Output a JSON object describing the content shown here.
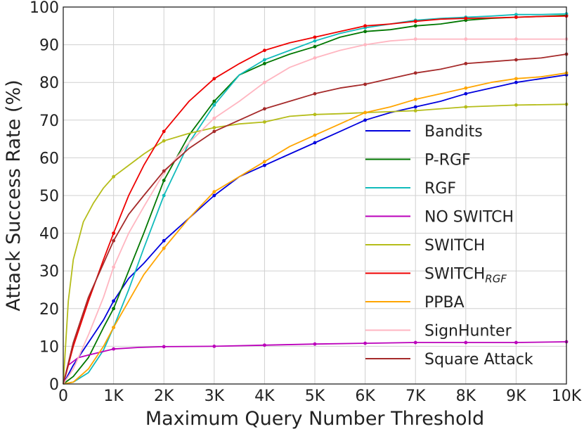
{
  "chart_data": {
    "type": "line",
    "title": "",
    "xlabel": "Maximum Query Number Threshold",
    "ylabel": "Attack Success Rate (%)",
    "xlim": [
      0,
      10000
    ],
    "ylim": [
      0,
      100
    ],
    "grid": true,
    "legend_position": "bottom-right",
    "x_ticks": [
      {
        "value": 0,
        "label": "0"
      },
      {
        "value": 1000,
        "label": "1K"
      },
      {
        "value": 2000,
        "label": "2K"
      },
      {
        "value": 3000,
        "label": "3K"
      },
      {
        "value": 4000,
        "label": "4K"
      },
      {
        "value": 5000,
        "label": "5K"
      },
      {
        "value": 6000,
        "label": "6K"
      },
      {
        "value": 7000,
        "label": "7K"
      },
      {
        "value": 8000,
        "label": "8K"
      },
      {
        "value": 9000,
        "label": "9K"
      },
      {
        "value": 10000,
        "label": "10K"
      }
    ],
    "y_ticks": [
      {
        "value": 0,
        "label": "0"
      },
      {
        "value": 10,
        "label": "10"
      },
      {
        "value": 20,
        "label": "20"
      },
      {
        "value": 30,
        "label": "30"
      },
      {
        "value": 40,
        "label": "40"
      },
      {
        "value": 50,
        "label": "50"
      },
      {
        "value": 60,
        "label": "60"
      },
      {
        "value": 70,
        "label": "70"
      },
      {
        "value": 80,
        "label": "80"
      },
      {
        "value": 90,
        "label": "90"
      },
      {
        "value": 100,
        "label": "100"
      }
    ],
    "series": [
      {
        "name": "Bandits",
        "label_main": "Bandits",
        "label_sub": "",
        "color": "#0000dd",
        "x": [
          0,
          200,
          500,
          800,
          1000,
          1300,
          1600,
          2000,
          2500,
          3000,
          3500,
          4000,
          4500,
          5000,
          5500,
          6000,
          6500,
          7000,
          7500,
          8000,
          8500,
          9000,
          9500,
          10000
        ],
        "y": [
          0,
          5,
          11,
          17,
          22,
          28,
          32,
          38,
          44,
          50,
          55,
          58,
          61,
          64,
          67,
          70,
          72,
          73.5,
          75,
          77,
          78.5,
          80,
          81,
          82
        ]
      },
      {
        "name": "P-RGF",
        "label_main": "P-RGF",
        "label_sub": "",
        "color": "#007700",
        "x": [
          0,
          200,
          500,
          800,
          1000,
          1300,
          1600,
          2000,
          2500,
          3000,
          3500,
          4000,
          4500,
          5000,
          5500,
          6000,
          6500,
          7000,
          7500,
          8000,
          8500,
          9000,
          9500,
          10000
        ],
        "y": [
          0,
          2,
          7,
          15,
          20,
          30,
          40,
          54,
          66,
          75,
          82,
          85,
          87.5,
          89.5,
          92,
          93.5,
          94,
          95,
          95.5,
          96.5,
          97,
          97.3,
          97.5,
          97.8
        ]
      },
      {
        "name": "RGF",
        "label_main": "RGF",
        "label_sub": "",
        "color": "#11bbbb",
        "x": [
          0,
          200,
          500,
          800,
          1000,
          1300,
          1600,
          2000,
          2500,
          3000,
          3500,
          4000,
          4500,
          5000,
          5500,
          6000,
          6500,
          7000,
          7500,
          8000,
          8500,
          9000,
          9500,
          10000
        ],
        "y": [
          0,
          0.5,
          3,
          9,
          15,
          25,
          36,
          50,
          64,
          74,
          82,
          86,
          88.5,
          91,
          93,
          94.5,
          95.5,
          96.5,
          97,
          97.3,
          97.6,
          98,
          98,
          98.2
        ]
      },
      {
        "name": "NO SWITCH",
        "label_main": "NO SWITCH",
        "label_sub": "",
        "color": "#bb00bb",
        "x": [
          0,
          100,
          300,
          600,
          1000,
          1500,
          2000,
          3000,
          4000,
          5000,
          6000,
          7000,
          8000,
          9000,
          10000
        ],
        "y": [
          0,
          5,
          7,
          8,
          9.3,
          9.7,
          9.9,
          10,
          10.3,
          10.6,
          10.8,
          11,
          11,
          11,
          11.2
        ]
      },
      {
        "name": "SWITCH",
        "label_main": "SWITCH",
        "label_sub": "",
        "color": "#b5bd1a",
        "x": [
          0,
          100,
          200,
          400,
          600,
          800,
          1000,
          1300,
          1600,
          2000,
          2500,
          3000,
          3500,
          4000,
          4500,
          5000,
          5500,
          6000,
          7000,
          8000,
          9000,
          10000
        ],
        "y": [
          0,
          22,
          33,
          43,
          48,
          52,
          55,
          58,
          61,
          64.5,
          66.5,
          68,
          69,
          69.5,
          71,
          71.5,
          71.7,
          72,
          72.5,
          73.5,
          74,
          74.2
        ]
      },
      {
        "name": "SWITCH_RGF",
        "label_main": "SWITCH",
        "label_sub": "RGF",
        "color": "#ee0000",
        "x": [
          0,
          200,
          500,
          800,
          1000,
          1300,
          1600,
          2000,
          2500,
          3000,
          3500,
          4000,
          4500,
          5000,
          5500,
          6000,
          6500,
          7000,
          7500,
          8000,
          8500,
          9000,
          9500,
          10000
        ],
        "y": [
          0,
          10,
          22,
          33,
          40,
          50,
          58,
          67,
          75,
          81,
          85,
          88.5,
          90.5,
          92,
          93.5,
          95,
          95.5,
          96.2,
          96.8,
          97,
          97.1,
          97.3,
          97.5,
          97.6
        ]
      },
      {
        "name": "PPBA",
        "label_main": "PPBA",
        "label_sub": "",
        "color": "#ffa500",
        "x": [
          0,
          200,
          500,
          800,
          1000,
          1300,
          1600,
          2000,
          2500,
          3000,
          3500,
          4000,
          4500,
          5000,
          5500,
          6000,
          6500,
          7000,
          7500,
          8000,
          8500,
          9000,
          9500,
          10000
        ],
        "y": [
          0,
          0.5,
          4,
          10,
          15,
          22,
          29,
          36,
          44,
          51,
          55,
          59,
          63,
          66,
          69,
          72,
          73.5,
          75.5,
          77,
          78.5,
          80,
          81,
          81.5,
          82.5
        ]
      },
      {
        "name": "SignHunter",
        "label_main": "SignHunter",
        "label_sub": "",
        "color": "#ffb6c1",
        "x": [
          0,
          200,
          500,
          800,
          1000,
          1300,
          1600,
          2000,
          2500,
          3000,
          3500,
          4000,
          4500,
          5000,
          5500,
          6000,
          6500,
          7000,
          7500,
          8000,
          8500,
          9000,
          9500,
          10000
        ],
        "y": [
          0,
          4,
          13,
          23,
          31,
          40,
          47,
          56,
          64,
          70.5,
          75,
          80,
          84,
          86.5,
          88.5,
          90,
          91,
          91.5,
          91.5,
          91.5,
          91.5,
          91.5,
          91.5,
          91.5
        ]
      },
      {
        "name": "Square Attack",
        "label_main": "Square Attack",
        "label_sub": "",
        "color": "#a52a2a",
        "x": [
          0,
          200,
          500,
          800,
          1000,
          1300,
          1600,
          2000,
          2500,
          3000,
          3500,
          4000,
          4500,
          5000,
          5500,
          6000,
          6500,
          7000,
          7500,
          8000,
          8500,
          9000,
          9500,
          10000
        ],
        "y": [
          0,
          11,
          23,
          32,
          38,
          45,
          50,
          56.5,
          62.5,
          67,
          70,
          73,
          75,
          77,
          78.5,
          79.5,
          81,
          82.5,
          83.5,
          85,
          85.5,
          86,
          86.5,
          87.5
        ]
      }
    ]
  }
}
